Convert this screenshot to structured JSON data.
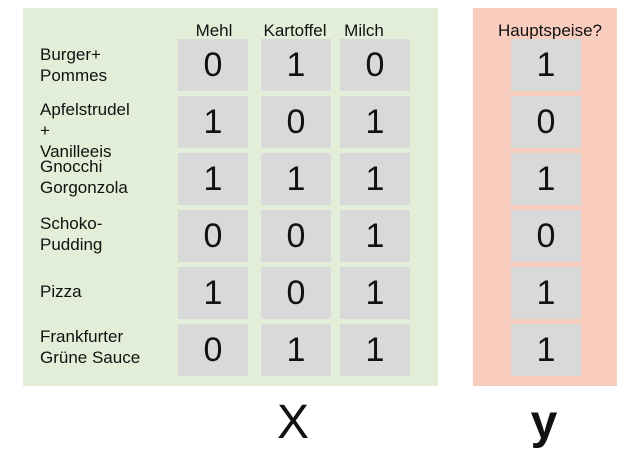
{
  "features_panel": {
    "columns": [
      "Mehl",
      "Kartoffel",
      "Milch"
    ],
    "rows": [
      {
        "label": "Burger+\nPommes",
        "values": [
          "0",
          "1",
          "0"
        ]
      },
      {
        "label": "Apfelstrudel\n+\nVanilleeis",
        "values": [
          "1",
          "0",
          "1"
        ]
      },
      {
        "label": "Gnocchi\nGorgonzola",
        "values": [
          "1",
          "1",
          "1"
        ]
      },
      {
        "label": "Schoko-\nPudding",
        "values": [
          "0",
          "0",
          "1"
        ]
      },
      {
        "label": "Pizza",
        "values": [
          "1",
          "0",
          "1"
        ]
      },
      {
        "label": "Frankfurter\nGrüne Sauce",
        "values": [
          "0",
          "1",
          "1"
        ]
      }
    ],
    "label": "X",
    "color": "#e2eed7"
  },
  "target_panel": {
    "header": "Hauptspeise?",
    "values": [
      "1",
      "0",
      "1",
      "0",
      "1",
      "1"
    ],
    "label": "y",
    "color": "#f8cdbd"
  },
  "cell_color": "#d9d9d9"
}
